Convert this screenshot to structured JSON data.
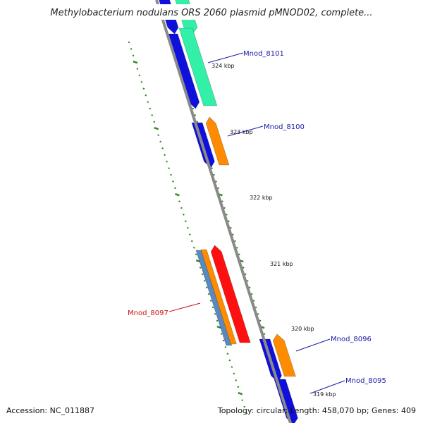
{
  "map": {
    "title": "Methylobacterium nodulans ORS 2060 plasmid pMNOD02, complete...",
    "accession_text": "Accession: NC_011887",
    "summary_text": "Topology: circular; Length: 458,070 bp; Genes: 409",
    "colors": {
      "backbone": "#8a8a8a",
      "tick": "#2e8b1e",
      "label_blue": "#1a1aa8",
      "label_red": "#cc1111",
      "blue": "#1010dd",
      "teal": "#33f0a8",
      "orange": "#ff8c00",
      "red": "#ff1010",
      "steel": "#5a88c0"
    },
    "scale_labels": [
      "324 kbp",
      "323 kbp",
      "322 kbp",
      "321 kbp",
      "320 kbp",
      "319 kbp"
    ],
    "genes": [
      {
        "name": "Mnod_8101",
        "color": "blue"
      },
      {
        "name": "Mnod_8100",
        "color": "blue"
      },
      {
        "name": "Mnod_8097",
        "color": "red"
      },
      {
        "name": "Mnod_8096",
        "color": "blue"
      },
      {
        "name": "Mnod_8095",
        "color": "blue"
      }
    ]
  }
}
